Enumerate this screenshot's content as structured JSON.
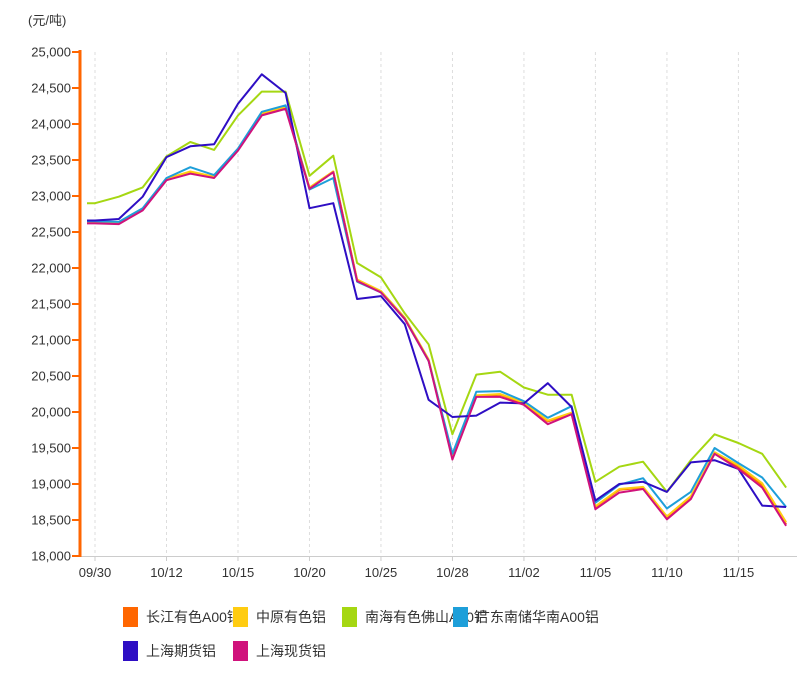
{
  "chart_data": {
    "type": "line",
    "y_axis_title": "(元/吨)",
    "ylim": [
      18000,
      25000
    ],
    "y_tick_step": 500,
    "y_tick_labels": [
      "25,000",
      "24,500",
      "24,000",
      "23,500",
      "23,000",
      "22,500",
      "22,000",
      "21,500",
      "21,000",
      "20,500",
      "20,000",
      "19,500",
      "19,000",
      "18,500",
      "18,000"
    ],
    "x_labels": [
      "09/30",
      "10/12",
      "10/15",
      "10/20",
      "10/25",
      "10/28",
      "11/02",
      "11/05",
      "11/10",
      "11/15"
    ],
    "x_label_every": 3,
    "n_points": 30,
    "grid": "vertical-dashed-at-labeled-ticks",
    "legend_position": "bottom",
    "colors": {
      "y_axis": "#FF6600",
      "x_axis": "#CCCCCC",
      "gridline": "#DDDDDD",
      "axis_text": "#333333"
    },
    "series": [
      {
        "name": "长江有色A00铝",
        "color": "#FF6600",
        "values": [
          22630,
          22620,
          22810,
          23230,
          23330,
          23260,
          23640,
          24140,
          24230,
          23110,
          23340,
          21830,
          21670,
          21300,
          20720,
          19370,
          20220,
          20240,
          20120,
          19870,
          19980,
          18680,
          18920,
          18950,
          18540,
          18820,
          19430,
          19240,
          18980,
          18440
        ]
      },
      {
        "name": "中原有色铝",
        "color": "#FFCC11",
        "values": [
          22640,
          22630,
          22820,
          23240,
          23340,
          23270,
          23650,
          24150,
          24240,
          23120,
          23340,
          21840,
          21680,
          21310,
          20730,
          19390,
          20230,
          20250,
          20130,
          19880,
          19990,
          18690,
          18930,
          18960,
          18550,
          18830,
          19440,
          19260,
          19010,
          18470
        ]
      },
      {
        "name": "南海有色佛山A00铝",
        "color": "#A5D712",
        "values": [
          22900,
          22990,
          23120,
          23550,
          23750,
          23640,
          24120,
          24450,
          24450,
          23280,
          23560,
          22070,
          21870,
          21370,
          20940,
          19690,
          20520,
          20560,
          20340,
          20240,
          20240,
          19030,
          19240,
          19310,
          18890,
          19330,
          19690,
          19570,
          19420,
          18950
        ]
      },
      {
        "name": "广东南储华南A00铝",
        "color": "#1E9FD9",
        "values": [
          22650,
          22640,
          22830,
          23250,
          23400,
          23290,
          23660,
          24170,
          24260,
          23090,
          23250,
          21810,
          21660,
          21290,
          20710,
          19420,
          20280,
          20290,
          20150,
          19920,
          20080,
          18740,
          18990,
          19080,
          18660,
          18890,
          19500,
          19290,
          19090,
          18680
        ]
      },
      {
        "name": "上海期货铝",
        "color": "#2E0EC4",
        "values": [
          22660,
          22680,
          22990,
          23540,
          23690,
          23720,
          24280,
          24690,
          24430,
          22830,
          22900,
          21570,
          21610,
          21220,
          20170,
          19930,
          19950,
          20130,
          20120,
          20400,
          20070,
          18770,
          19000,
          19030,
          18890,
          19300,
          19330,
          19210,
          18700,
          18680
        ]
      },
      {
        "name": "上海现货铝",
        "color": "#D0127C",
        "values": [
          22620,
          22610,
          22800,
          23220,
          23310,
          23250,
          23630,
          24120,
          24210,
          23100,
          23330,
          21820,
          21660,
          21290,
          20710,
          19340,
          20210,
          20210,
          20100,
          19830,
          19970,
          18650,
          18880,
          18930,
          18510,
          18790,
          19420,
          19210,
          18950,
          18420
        ]
      }
    ]
  }
}
